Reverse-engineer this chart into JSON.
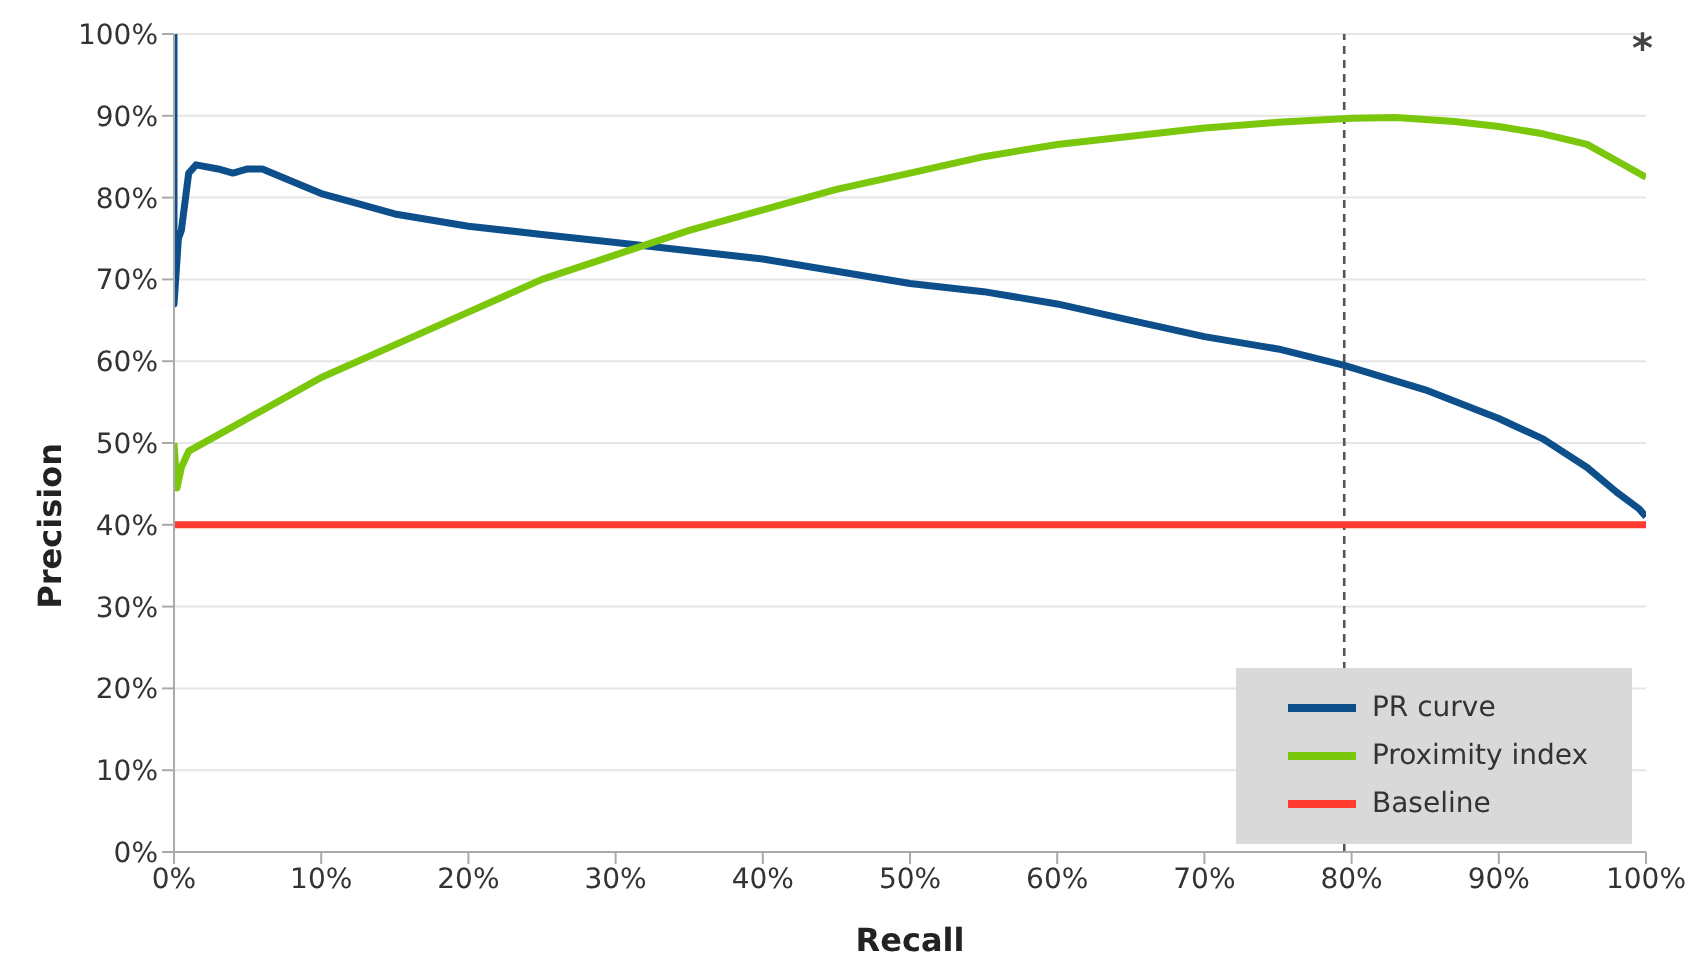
{
  "chart_data": {
    "type": "line",
    "xlabel": "Recall",
    "ylabel": "Precision",
    "xlim": [
      0,
      100
    ],
    "ylim": [
      0,
      100
    ],
    "xticks": [
      {
        "value": 0,
        "label": "0%"
      },
      {
        "value": 10,
        "label": "10%"
      },
      {
        "value": 20,
        "label": "20%"
      },
      {
        "value": 30,
        "label": "30%"
      },
      {
        "value": 40,
        "label": "40%"
      },
      {
        "value": 50,
        "label": "50%"
      },
      {
        "value": 60,
        "label": "60%"
      },
      {
        "value": 70,
        "label": "70%"
      },
      {
        "value": 80,
        "label": "80%"
      },
      {
        "value": 90,
        "label": "90%"
      },
      {
        "value": 100,
        "label": "100%"
      }
    ],
    "yticks": [
      {
        "value": 0,
        "label": "0%"
      },
      {
        "value": 10,
        "label": "10%"
      },
      {
        "value": 20,
        "label": "20%"
      },
      {
        "value": 30,
        "label": "30%"
      },
      {
        "value": 40,
        "label": "40%"
      },
      {
        "value": 50,
        "label": "50%"
      },
      {
        "value": 60,
        "label": "60%"
      },
      {
        "value": 70,
        "label": "70%"
      },
      {
        "value": 80,
        "label": "80%"
      },
      {
        "value": 90,
        "label": "90%"
      },
      {
        "value": 100,
        "label": "100%"
      }
    ],
    "grid": "y",
    "legend": "bottom right",
    "marker": "none",
    "line_style": "solid",
    "ref_lines": [
      {
        "axis": "x",
        "value": 79.5,
        "color": "#555555",
        "line_style": "dashed"
      }
    ],
    "annotations": [
      "*"
    ],
    "series": [
      {
        "name": "PR curve",
        "color": "#0d4f8b",
        "x": [
          0,
          0,
          0.3,
          0.5,
          1,
          1.5,
          3,
          4,
          5,
          6,
          8,
          10,
          12,
          15,
          20,
          25,
          30,
          35,
          40,
          45,
          50,
          55,
          60,
          65,
          70,
          75,
          79.5,
          85,
          90,
          93,
          96,
          98,
          99.5,
          100
        ],
        "values": [
          100,
          67,
          75,
          76,
          83,
          84,
          83.5,
          83,
          83.5,
          83.5,
          82,
          80.5,
          79.5,
          78,
          76.5,
          75.5,
          74.5,
          73.5,
          72.5,
          71,
          69.5,
          68.5,
          67,
          65,
          63,
          61.5,
          59.5,
          56.5,
          53,
          50.5,
          47,
          44,
          42,
          41
        ]
      },
      {
        "name": "Proximity index",
        "color": "#7ac70c",
        "x": [
          0,
          0.2,
          0.5,
          1,
          3,
          5,
          10,
          15,
          20,
          25,
          30,
          35,
          40,
          45,
          50,
          55,
          60,
          65,
          70,
          75,
          80,
          83,
          87,
          90,
          93,
          96,
          98,
          100
        ],
        "values": [
          50,
          44.5,
          47,
          49,
          51,
          53,
          58,
          62,
          66,
          70,
          73,
          76,
          78.5,
          81,
          83,
          85,
          86.5,
          87.5,
          88.5,
          89.2,
          89.7,
          89.8,
          89.3,
          88.7,
          87.8,
          86.5,
          84.5,
          82.5
        ]
      },
      {
        "name": "Baseline",
        "color": "#ff3b30",
        "x": [
          0,
          100
        ],
        "values": [
          40,
          40
        ]
      }
    ]
  }
}
